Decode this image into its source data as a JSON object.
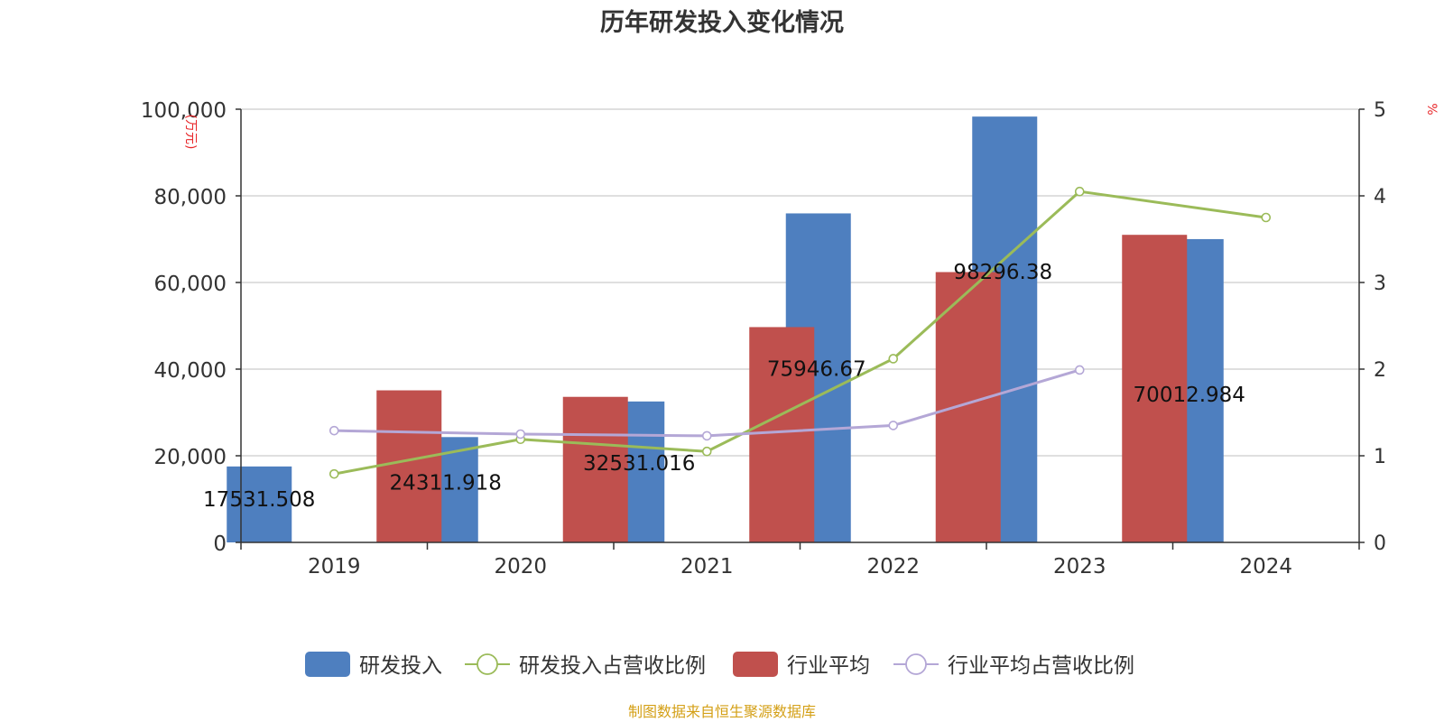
{
  "chart_data": {
    "type": "bar",
    "title": "历年研发投入变化情况",
    "categories": [
      "2019",
      "2020",
      "2021",
      "2022",
      "2023",
      "2024"
    ],
    "series": [
      {
        "name": "研发投入",
        "kind": "bar",
        "axis": "left",
        "color": "#4e7fbf",
        "values": [
          17531.508,
          24311.918,
          32531.016,
          75946.67,
          98296.38,
          70012.984
        ],
        "labels": [
          "17531.508",
          "24311.918",
          "32531.016",
          "75946.67",
          "98296.38",
          "70012.984"
        ]
      },
      {
        "name": "研发投入占营收比例",
        "kind": "line",
        "axis": "right",
        "color": "#9bbb59",
        "values": [
          0.79,
          1.19,
          1.05,
          2.12,
          4.05,
          3.75
        ]
      },
      {
        "name": "行业平均",
        "kind": "bar",
        "axis": "left",
        "color": "#c0504d",
        "values": [
          35100,
          33600,
          49700,
          62400,
          71000,
          null
        ]
      },
      {
        "name": "行业平均占营收比例",
        "kind": "line",
        "axis": "right",
        "color": "#b4a7d6",
        "values": [
          1.29,
          1.25,
          1.23,
          1.35,
          1.99,
          null
        ]
      }
    ],
    "y_left": {
      "label": "(万元)",
      "ticks": [
        "0",
        "20,000",
        "40,000",
        "60,000",
        "80,000",
        "100,000"
      ],
      "min": 0,
      "max": 100000
    },
    "y_right": {
      "label": "%",
      "ticks": [
        "0",
        "1",
        "2",
        "3",
        "4",
        "5"
      ],
      "min": 0,
      "max": 5
    },
    "grid": true,
    "legend_position": "bottom"
  },
  "source_note": "制图数据来自恒生聚源数据库",
  "colors": {
    "axis_label": "#e8272a",
    "source": "#d4a017",
    "grid": "#cccccc",
    "axis": "#333333"
  }
}
